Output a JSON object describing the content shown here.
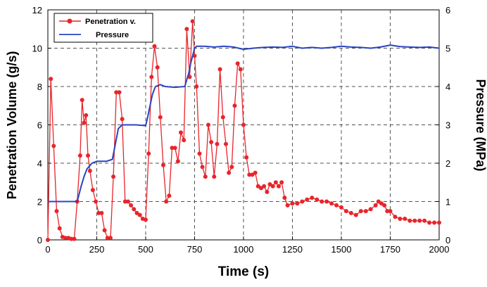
{
  "chart_data": {
    "type": "line",
    "xlabel": "Time (s)",
    "ylabel_left": "Penetration Volume (g/s)",
    "ylabel_right": "Pressure (MPa)",
    "xlim": [
      0,
      2000
    ],
    "ylim_left": [
      0,
      12
    ],
    "ylim_right": [
      0,
      6
    ],
    "x_ticks": [
      "0",
      "250",
      "500",
      "750",
      "1000",
      "1250",
      "1500",
      "1750",
      "2000"
    ],
    "y_left_ticks": [
      "0",
      "2",
      "4",
      "6",
      "8",
      "10",
      "12"
    ],
    "y_right_ticks": [
      "0",
      "1",
      "2",
      "3",
      "4",
      "5",
      "6"
    ],
    "grid": true,
    "legend_position": "top-left",
    "series": [
      {
        "name": "Penetration v.",
        "axis": "left",
        "color": "#e8252b",
        "marker": "circle",
        "x": [
          0,
          15,
          30,
          45,
          60,
          75,
          90,
          105,
          120,
          135,
          150,
          165,
          175,
          185,
          195,
          205,
          215,
          230,
          245,
          260,
          275,
          290,
          305,
          320,
          335,
          350,
          365,
          380,
          395,
          410,
          425,
          440,
          455,
          470,
          485,
          500,
          515,
          530,
          545,
          560,
          575,
          590,
          605,
          620,
          635,
          650,
          665,
          680,
          695,
          710,
          725,
          740,
          750,
          760,
          775,
          790,
          805,
          820,
          835,
          850,
          865,
          880,
          895,
          910,
          925,
          940,
          955,
          970,
          985,
          1000,
          1015,
          1030,
          1045,
          1060,
          1075,
          1090,
          1105,
          1120,
          1135,
          1150,
          1165,
          1180,
          1195,
          1210,
          1225,
          1250,
          1275,
          1300,
          1325,
          1350,
          1375,
          1400,
          1425,
          1450,
          1475,
          1500,
          1525,
          1550,
          1575,
          1600,
          1625,
          1650,
          1675,
          1690,
          1705,
          1720,
          1735,
          1750,
          1775,
          1800,
          1825,
          1850,
          1875,
          1900,
          1925,
          1950,
          1975,
          2000
        ],
        "y": [
          0.0,
          8.4,
          4.9,
          1.5,
          0.6,
          0.15,
          0.1,
          0.1,
          0.05,
          0.05,
          2.0,
          4.4,
          7.3,
          6.1,
          6.5,
          4.4,
          3.6,
          2.6,
          2.0,
          1.4,
          1.4,
          0.5,
          0.1,
          0.1,
          3.3,
          7.7,
          7.7,
          6.3,
          2.0,
          2.0,
          1.8,
          1.6,
          1.4,
          1.3,
          1.1,
          1.05,
          4.5,
          8.5,
          10.1,
          9.0,
          6.4,
          3.9,
          2.0,
          2.3,
          4.8,
          4.8,
          4.1,
          5.6,
          5.2,
          11.0,
          8.5,
          11.4,
          9.6,
          8.0,
          4.5,
          3.8,
          3.3,
          6.0,
          5.1,
          3.3,
          5.0,
          8.9,
          6.4,
          5.0,
          3.5,
          3.8,
          7.0,
          9.2,
          8.9,
          6.0,
          4.3,
          3.4,
          3.4,
          3.5,
          2.8,
          2.7,
          2.8,
          2.5,
          2.9,
          2.8,
          3.0,
          2.8,
          3.0,
          2.2,
          1.8,
          1.9,
          1.9,
          2.0,
          2.1,
          2.2,
          2.1,
          2.0,
          2.0,
          1.9,
          1.8,
          1.7,
          1.5,
          1.4,
          1.3,
          1.5,
          1.5,
          1.6,
          1.8,
          2.0,
          1.9,
          1.8,
          1.5,
          1.5,
          1.2,
          1.1,
          1.1,
          1.0,
          1.0,
          1.0,
          1.0,
          0.9,
          0.9,
          0.9
        ]
      },
      {
        "name": "Pressure",
        "axis": "right",
        "color": "#2a44c0",
        "marker": "none",
        "x": [
          0,
          50,
          100,
          150,
          160,
          170,
          185,
          200,
          225,
          250,
          275,
          300,
          330,
          345,
          360,
          380,
          400,
          450,
          500,
          510,
          520,
          535,
          550,
          575,
          600,
          650,
          700,
          720,
          730,
          745,
          750,
          760,
          800,
          850,
          900,
          950,
          1000,
          1050,
          1100,
          1150,
          1200,
          1250,
          1300,
          1350,
          1400,
          1450,
          1500,
          1550,
          1600,
          1650,
          1700,
          1750,
          1800,
          1850,
          1900,
          1950,
          2000
        ],
        "y": [
          1.0,
          1.0,
          1.0,
          1.0,
          1.2,
          1.4,
          1.65,
          1.85,
          2.0,
          2.05,
          2.05,
          2.05,
          2.1,
          2.5,
          2.9,
          3.0,
          3.0,
          3.0,
          2.98,
          3.2,
          3.45,
          3.8,
          4.0,
          4.05,
          4.0,
          3.98,
          4.0,
          4.35,
          4.6,
          4.9,
          5.0,
          5.05,
          5.05,
          5.03,
          5.05,
          5.03,
          4.97,
          5.0,
          5.02,
          5.03,
          5.02,
          5.05,
          5.0,
          5.02,
          5.0,
          5.02,
          5.05,
          5.03,
          5.02,
          5.0,
          5.03,
          5.08,
          5.04,
          5.03,
          5.02,
          5.03,
          5.0
        ]
      }
    ]
  }
}
